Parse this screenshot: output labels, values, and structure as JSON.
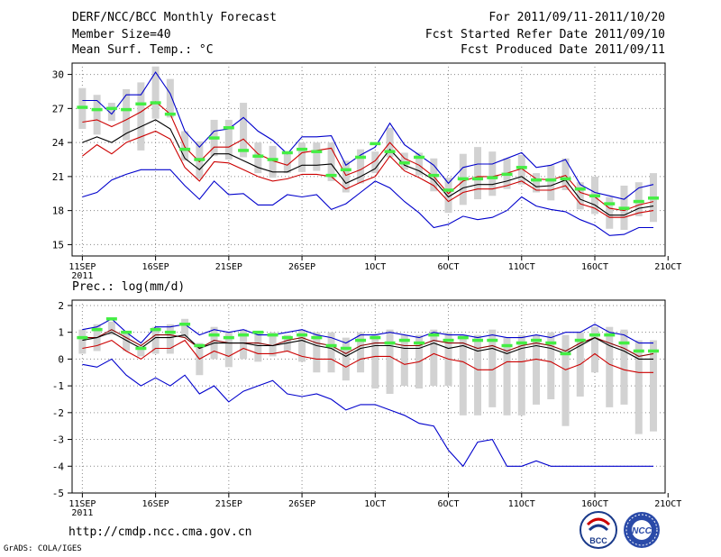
{
  "header": {
    "title": "DERF/NCC/BCC Monthly Forecast",
    "member_size": "Member Size=40",
    "variable": "Mean Surf. Temp.: °C",
    "period": "For 2011/09/11-2011/10/20",
    "fcst_started": "Fcst Started Refer Date 2011/09/10",
    "fcst_produced": "Fcst Produced Date 2011/09/11"
  },
  "footer": {
    "url": "http://cmdp.ncc.cma.gov.cn",
    "grads": "GrADS: COLA/IGES",
    "logo_bcc": "BCC",
    "logo_ncc": "NCC"
  },
  "chart_data": [
    {
      "type": "line",
      "name": "temperature",
      "ylabel": "Mean Surf. Temp.: °C",
      "ylim": [
        14,
        31
      ],
      "yticks": [
        15,
        18,
        21,
        24,
        27,
        30
      ],
      "xlim": [
        0.3,
        40.8
      ],
      "xticks": [
        1,
        6,
        11,
        16,
        21,
        26,
        31,
        36,
        41
      ],
      "xtick_labels": [
        "11SEP",
        "16SEP",
        "21SEP",
        "26SEP",
        "1OCT",
        "6OCT",
        "11OCT",
        "16OCT",
        "21OCT"
      ],
      "year_label": "2011",
      "day": [
        1,
        2,
        3,
        4,
        5,
        6,
        7,
        8,
        9,
        10,
        11,
        12,
        13,
        14,
        15,
        16,
        17,
        18,
        19,
        20,
        21,
        22,
        23,
        24,
        25,
        26,
        27,
        28,
        29,
        30,
        31,
        32,
        33,
        34,
        35,
        36,
        37,
        38,
        39,
        40
      ],
      "series": [
        {
          "name": "max",
          "color": "#0000cc",
          "values": [
            27.7,
            27.7,
            26.5,
            28.2,
            28.2,
            30.2,
            28.3,
            25.0,
            23.6,
            25.0,
            25.2,
            26.2,
            25.0,
            24.2,
            23.0,
            24.5,
            24.5,
            24.6,
            22.0,
            22.9,
            23.6,
            25.7,
            23.8,
            22.9,
            22.0,
            20.4,
            21.8,
            22.1,
            22.1,
            22.6,
            23.1,
            21.8,
            22.0,
            22.5,
            20.3,
            19.6,
            19.3,
            19.0,
            20.0,
            20.3
          ]
        },
        {
          "name": "upper",
          "color": "#cc0000",
          "values": [
            25.8,
            26.0,
            25.4,
            26.0,
            26.7,
            27.6,
            26.5,
            23.6,
            22.3,
            23.6,
            23.6,
            24.3,
            23.0,
            22.4,
            22.0,
            23.1,
            23.3,
            23.5,
            21.1,
            21.6,
            22.4,
            24.0,
            22.6,
            22.0,
            21.0,
            19.5,
            20.6,
            21.0,
            21.0,
            21.3,
            21.7,
            20.8,
            20.7,
            21.1,
            19.6,
            19.2,
            18.2,
            18.0,
            18.5,
            18.8
          ]
        },
        {
          "name": "mean",
          "color": "#000000",
          "values": [
            24.0,
            24.5,
            24.0,
            24.8,
            25.4,
            26.0,
            25.2,
            22.6,
            21.6,
            23.0,
            23.0,
            22.4,
            21.8,
            21.4,
            21.4,
            22.0,
            22.0,
            22.1,
            20.4,
            21.0,
            21.7,
            23.4,
            22.0,
            21.5,
            20.7,
            19.2,
            20.0,
            20.3,
            20.3,
            20.6,
            21.0,
            20.1,
            20.2,
            20.7,
            19.0,
            18.5,
            17.6,
            17.6,
            18.2,
            18.4
          ]
        },
        {
          "name": "lower",
          "color": "#cc0000",
          "values": [
            22.8,
            23.8,
            23.0,
            24.0,
            24.5,
            25.0,
            24.3,
            21.8,
            20.6,
            22.3,
            22.2,
            21.6,
            21.0,
            20.6,
            20.8,
            21.2,
            21.2,
            21.0,
            19.9,
            20.5,
            21.0,
            22.8,
            21.5,
            20.9,
            20.2,
            18.8,
            19.6,
            19.9,
            19.9,
            20.2,
            20.6,
            19.8,
            19.8,
            20.2,
            18.6,
            18.2,
            17.4,
            17.4,
            17.8,
            18.0
          ]
        },
        {
          "name": "min",
          "color": "#0000cc",
          "values": [
            19.2,
            19.6,
            20.7,
            21.2,
            21.6,
            21.6,
            21.6,
            20.2,
            19.0,
            20.6,
            19.4,
            19.5,
            18.5,
            18.5,
            19.4,
            19.2,
            19.4,
            18.1,
            18.6,
            19.6,
            20.6,
            20.0,
            18.8,
            17.8,
            16.5,
            16.8,
            17.5,
            17.2,
            17.4,
            18.0,
            19.2,
            18.4,
            18.1,
            17.9,
            17.2,
            16.7,
            15.8,
            15.9,
            16.5,
            16.5
          ]
        },
        {
          "name": "observed",
          "color": "#44ee44",
          "values": [
            27.1,
            26.9,
            27.0,
            26.9,
            27.4,
            27.5,
            26.5,
            23.4,
            22.5,
            24.4,
            25.3,
            23.3,
            22.8,
            22.5,
            23.1,
            23.4,
            23.2,
            21.1,
            21.6,
            22.7,
            23.9,
            23.2,
            22.2,
            22.7,
            21.1,
            19.8,
            20.8,
            20.8,
            20.9,
            21.2,
            21.8,
            20.7,
            20.7,
            20.8,
            19.9,
            19.3,
            18.6,
            18.2,
            18.8,
            19.1
          ]
        },
        {
          "name": "spread_high",
          "color": "#d2d2d2",
          "values": [
            28.8,
            28.2,
            27.5,
            28.7,
            29.3,
            30.7,
            29.6,
            25.0,
            24.1,
            26.0,
            26.0,
            27.5,
            24.0,
            23.7,
            23.2,
            24.0,
            24.0,
            24.0,
            22.4,
            23.4,
            23.2,
            25.3,
            23.1,
            23.1,
            22.6,
            20.9,
            23.0,
            23.6,
            23.2,
            22.6,
            22.9,
            21.3,
            22.0,
            22.6,
            20.5,
            21.0,
            19.2,
            20.2,
            20.5,
            21.3
          ]
        },
        {
          "name": "spread_low",
          "color": "#d2d2d2",
          "values": [
            25.2,
            24.7,
            25.9,
            24.2,
            23.3,
            26.1,
            26.2,
            22.4,
            20.8,
            22.8,
            22.5,
            22.7,
            21.3,
            20.9,
            21.3,
            21.4,
            21.5,
            20.6,
            19.6,
            20.4,
            21.3,
            22.7,
            21.6,
            21.1,
            19.7,
            17.8,
            18.5,
            19.0,
            19.3,
            19.9,
            20.3,
            19.6,
            18.9,
            19.8,
            18.1,
            17.7,
            16.4,
            16.3,
            17.5,
            17.0
          ]
        }
      ]
    },
    {
      "type": "line",
      "name": "precipitation",
      "ylabel": "Prec.: log(mm/d)",
      "ylim": [
        -5,
        2.2
      ],
      "yticks": [
        -5,
        -4,
        -3,
        -2,
        -1,
        0,
        1,
        2
      ],
      "xlim": [
        0.3,
        40.8
      ],
      "xticks": [
        1,
        6,
        11,
        16,
        21,
        26,
        31,
        36,
        41
      ],
      "xtick_labels": [
        "11SEP",
        "16SEP",
        "21SEP",
        "26SEP",
        "1OCT",
        "6OCT",
        "11OCT",
        "16OCT",
        "21OCT"
      ],
      "year_label": "2011",
      "day": [
        1,
        2,
        3,
        4,
        5,
        6,
        7,
        8,
        9,
        10,
        11,
        12,
        13,
        14,
        15,
        16,
        17,
        18,
        19,
        20,
        21,
        22,
        23,
        24,
        25,
        26,
        27,
        28,
        29,
        30,
        31,
        32,
        33,
        34,
        35,
        36,
        37,
        38,
        39,
        40
      ],
      "series": [
        {
          "name": "max",
          "color": "#0000cc",
          "values": [
            1.1,
            1.2,
            1.5,
            1.0,
            0.6,
            1.2,
            1.2,
            1.3,
            0.9,
            1.1,
            1.0,
            1.1,
            0.9,
            0.9,
            1.0,
            1.1,
            0.9,
            0.8,
            0.6,
            0.9,
            0.9,
            1.0,
            0.9,
            0.8,
            1.0,
            0.9,
            0.9,
            0.8,
            0.9,
            0.8,
            0.8,
            0.9,
            0.8,
            1.0,
            1.0,
            1.3,
            1.0,
            0.9,
            0.6,
            0.6
          ]
        },
        {
          "name": "upper",
          "color": "#8b0000",
          "values": [
            0.8,
            0.8,
            1.1,
            0.8,
            0.5,
            0.9,
            0.9,
            0.8,
            0.4,
            0.7,
            0.6,
            0.6,
            0.6,
            0.5,
            0.7,
            0.8,
            0.6,
            0.5,
            0.2,
            0.5,
            0.6,
            0.6,
            0.5,
            0.5,
            0.7,
            0.6,
            0.6,
            0.4,
            0.5,
            0.3,
            0.5,
            0.6,
            0.5,
            0.3,
            0.6,
            0.8,
            0.6,
            0.4,
            0.1,
            0.2
          ]
        },
        {
          "name": "mean",
          "color": "#000000",
          "values": [
            0.7,
            0.8,
            1.0,
            0.7,
            0.4,
            0.8,
            0.8,
            0.9,
            0.4,
            0.6,
            0.6,
            0.6,
            0.5,
            0.5,
            0.6,
            0.7,
            0.5,
            0.4,
            0.1,
            0.4,
            0.5,
            0.5,
            0.4,
            0.4,
            0.6,
            0.4,
            0.5,
            0.3,
            0.4,
            0.2,
            0.4,
            0.5,
            0.4,
            0.2,
            0.5,
            0.8,
            0.5,
            0.3,
            0.0,
            0.0
          ]
        },
        {
          "name": "lower",
          "color": "#cc0000",
          "values": [
            0.4,
            0.5,
            0.7,
            0.3,
            0.0,
            0.4,
            0.4,
            0.7,
            0.0,
            0.3,
            0.1,
            0.4,
            0.2,
            0.2,
            0.3,
            0.1,
            0.0,
            0.0,
            -0.3,
            0.0,
            0.1,
            0.1,
            -0.2,
            -0.1,
            0.2,
            0.0,
            -0.1,
            -0.4,
            -0.4,
            -0.1,
            -0.1,
            0.0,
            -0.1,
            -0.4,
            -0.2,
            0.2,
            -0.2,
            -0.4,
            -0.5,
            -0.5
          ]
        },
        {
          "name": "min",
          "color": "#0000cc",
          "values": [
            -0.2,
            -0.3,
            0.0,
            -0.6,
            -1.0,
            -0.7,
            -1.0,
            -0.6,
            -1.3,
            -1.0,
            -1.6,
            -1.2,
            -1.0,
            -0.8,
            -1.3,
            -1.4,
            -1.3,
            -1.5,
            -1.9,
            -1.7,
            -1.7,
            -1.9,
            -2.1,
            -2.4,
            -2.5,
            -3.4,
            -4.0,
            -3.1,
            -3.0,
            -4.0,
            -4.0,
            -3.8,
            -4.0,
            -4.0,
            -4.0,
            -4.0,
            -4.0,
            -4.0,
            -4.0,
            -4.0
          ]
        },
        {
          "name": "observed",
          "color": "#44ee44",
          "values": [
            0.8,
            1.1,
            1.5,
            1.0,
            0.4,
            1.1,
            1.0,
            1.3,
            0.5,
            0.9,
            0.8,
            0.9,
            1.0,
            0.9,
            0.8,
            0.9,
            0.8,
            0.5,
            0.4,
            0.7,
            0.8,
            0.6,
            0.7,
            0.6,
            0.9,
            0.7,
            0.8,
            0.7,
            0.7,
            0.5,
            0.6,
            0.7,
            0.6,
            0.2,
            0.7,
            0.9,
            0.9,
            0.6,
            0.3,
            0.3
          ]
        },
        {
          "name": "spread_high",
          "color": "#d2d2d2",
          "values": [
            1.1,
            1.3,
            1.4,
            1.0,
            0.5,
            1.2,
            1.3,
            1.5,
            0.6,
            1.2,
            1.0,
            1.1,
            1.0,
            1.0,
            0.9,
            1.1,
            1.0,
            1.0,
            0.8,
            1.0,
            0.9,
            1.1,
            0.9,
            0.9,
            1.1,
            1.0,
            0.9,
            0.9,
            1.1,
            0.8,
            0.9,
            0.9,
            1.0,
            0.9,
            1.0,
            1.2,
            1.2,
            1.1,
            0.7,
            0.7
          ]
        },
        {
          "name": "spread_low",
          "color": "#d2d2d2",
          "values": [
            0.2,
            0.3,
            0.9,
            0.3,
            0.1,
            0.2,
            0.2,
            0.8,
            -0.6,
            0.0,
            -0.3,
            0.0,
            -0.1,
            0.1,
            0.3,
            -0.1,
            -0.5,
            -0.5,
            -0.8,
            -0.5,
            -1.1,
            -1.3,
            -1.0,
            -1.1,
            -1.0,
            -1.0,
            -2.1,
            -2.1,
            -1.8,
            -2.1,
            -2.1,
            -1.7,
            -1.5,
            -2.5,
            -1.4,
            -0.5,
            -1.8,
            -1.7,
            -2.8,
            -2.7
          ]
        }
      ]
    }
  ]
}
